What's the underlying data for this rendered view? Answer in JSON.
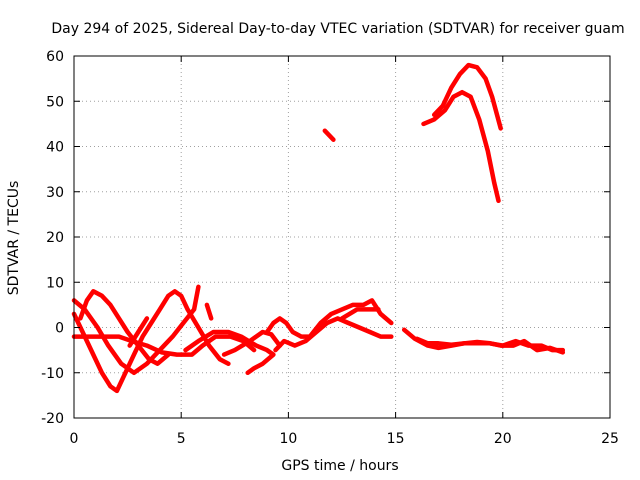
{
  "chart_data": {
    "type": "line",
    "title": "Day 294 of 2025, Sidereal Day-to-day VTEC variation (SDTVAR) for receiver guam",
    "xlabel": "GPS time / hours",
    "ylabel": "SDTVAR / TECUs",
    "xlim": [
      0,
      25
    ],
    "ylim": [
      -20,
      60
    ],
    "xticks": [
      0,
      5,
      10,
      15,
      20,
      25
    ],
    "yticks": [
      -20,
      -10,
      0,
      10,
      20,
      30,
      40,
      50,
      60
    ],
    "grid": true,
    "legend": "none",
    "color": "#ff0000",
    "series": [
      {
        "name": "track-1",
        "points": [
          [
            0,
            3
          ],
          [
            0.4,
            -1
          ],
          [
            0.9,
            -6
          ],
          [
            1.3,
            -10
          ],
          [
            1.7,
            -13
          ],
          [
            2.0,
            -14
          ],
          [
            2.3,
            -11
          ],
          [
            2.8,
            -6
          ],
          [
            3.2,
            -2
          ],
          [
            3.6,
            1
          ],
          [
            4.0,
            4
          ],
          [
            4.4,
            7
          ],
          [
            4.7,
            8
          ],
          [
            5.0,
            7
          ],
          [
            5.3,
            4
          ],
          [
            5.8,
            0
          ],
          [
            6.3,
            -4
          ],
          [
            6.8,
            -7
          ],
          [
            7.2,
            -8
          ]
        ]
      },
      {
        "name": "track-2",
        "points": [
          [
            0,
            6
          ],
          [
            0.5,
            4
          ],
          [
            1.1,
            0
          ],
          [
            1.6,
            -4
          ],
          [
            2.2,
            -8
          ],
          [
            2.8,
            -10
          ],
          [
            3.4,
            -8
          ],
          [
            4.0,
            -5
          ],
          [
            4.6,
            -2
          ],
          [
            5.1,
            1
          ],
          [
            5.6,
            4
          ],
          [
            5.8,
            9
          ]
        ]
      },
      {
        "name": "track-3",
        "points": [
          [
            0.3,
            2
          ],
          [
            0.6,
            6
          ],
          [
            0.9,
            8
          ],
          [
            1.3,
            7
          ],
          [
            1.7,
            5
          ],
          [
            2.1,
            2
          ],
          [
            2.5,
            -1
          ],
          [
            3.0,
            -4
          ],
          [
            3.5,
            -7
          ],
          [
            3.9,
            -8
          ],
          [
            4.4,
            -6
          ]
        ]
      },
      {
        "name": "track-4",
        "points": [
          [
            0,
            -2
          ],
          [
            1.2,
            -2
          ],
          [
            2.1,
            -2
          ],
          [
            2.7,
            -3
          ],
          [
            3.4,
            -4
          ],
          [
            4.1,
            -5.5
          ],
          [
            4.8,
            -6
          ],
          [
            5.5,
            -6
          ],
          [
            6.0,
            -4
          ],
          [
            6.6,
            -2
          ],
          [
            7.3,
            -2
          ],
          [
            7.9,
            -3
          ],
          [
            8.4,
            -5
          ]
        ]
      },
      {
        "name": "track-5",
        "points": [
          [
            2.6,
            -4
          ],
          [
            3.0,
            -1
          ],
          [
            3.4,
            2
          ]
        ]
      },
      {
        "name": "track-6",
        "points": [
          [
            6.2,
            5
          ],
          [
            6.4,
            2
          ]
        ]
      },
      {
        "name": "track-7",
        "points": [
          [
            5.2,
            -5
          ],
          [
            5.8,
            -3
          ],
          [
            6.5,
            -1
          ],
          [
            7.2,
            -1
          ],
          [
            7.8,
            -2
          ],
          [
            8.5,
            -4
          ],
          [
            9.0,
            -5
          ],
          [
            9.3,
            -6
          ],
          [
            8.8,
            -8
          ],
          [
            8.4,
            -9
          ],
          [
            8.1,
            -10
          ]
        ]
      },
      {
        "name": "track-8",
        "points": [
          [
            7.0,
            -6
          ],
          [
            7.5,
            -5
          ],
          [
            8.2,
            -3
          ],
          [
            8.8,
            -1
          ],
          [
            9.2,
            -1.5
          ],
          [
            9.6,
            -4
          ]
        ]
      },
      {
        "name": "track-9",
        "points": [
          [
            9.0,
            -1
          ],
          [
            9.3,
            1
          ],
          [
            9.6,
            2
          ],
          [
            9.9,
            1
          ],
          [
            10.2,
            -1
          ],
          [
            10.6,
            -2
          ],
          [
            11.0,
            -2
          ],
          [
            11.5,
            1
          ],
          [
            12.0,
            3
          ],
          [
            12.5,
            4
          ],
          [
            13.0,
            5
          ],
          [
            13.5,
            5
          ],
          [
            13.9,
            6
          ],
          [
            14.3,
            3
          ],
          [
            14.8,
            1
          ]
        ]
      },
      {
        "name": "track-10",
        "points": [
          [
            9.4,
            -5
          ],
          [
            9.8,
            -3
          ],
          [
            10.3,
            -4
          ],
          [
            10.8,
            -3
          ],
          [
            11.3,
            -1
          ],
          [
            11.8,
            1
          ],
          [
            12.3,
            2
          ],
          [
            12.8,
            1
          ],
          [
            13.3,
            0
          ],
          [
            13.8,
            -1
          ],
          [
            14.3,
            -2
          ],
          [
            14.8,
            -2
          ]
        ]
      },
      {
        "name": "track-11",
        "points": [
          [
            11.7,
            43.5
          ],
          [
            12.1,
            41.5
          ]
        ]
      },
      {
        "name": "track-12",
        "points": [
          [
            12.5,
            2
          ],
          [
            13.2,
            4
          ],
          [
            13.8,
            4
          ],
          [
            14.2,
            4
          ]
        ]
      },
      {
        "name": "track-13",
        "points": [
          [
            15.4,
            -0.5
          ],
          [
            15.9,
            -2.5
          ],
          [
            16.5,
            -4
          ],
          [
            17.0,
            -4.5
          ],
          [
            17.6,
            -4
          ],
          [
            18.2,
            -3.5
          ],
          [
            18.8,
            -3.5
          ],
          [
            19.4,
            -3.5
          ],
          [
            20.0,
            -4
          ],
          [
            20.6,
            -3
          ],
          [
            21.2,
            -4
          ],
          [
            21.8,
            -4
          ],
          [
            22.3,
            -5
          ],
          [
            22.8,
            -5
          ]
        ]
      },
      {
        "name": "track-14",
        "points": [
          [
            16.0,
            -2.5
          ],
          [
            16.5,
            -3.5
          ],
          [
            17.0,
            -3.5
          ],
          [
            17.6,
            -3.8
          ],
          [
            18.2,
            -3.5
          ],
          [
            18.8,
            -3.2
          ],
          [
            19.4,
            -3.5
          ],
          [
            19.9,
            -4
          ],
          [
            20.5,
            -4
          ],
          [
            21.0,
            -3
          ],
          [
            21.6,
            -5
          ],
          [
            22.2,
            -4.5
          ],
          [
            22.8,
            -5.5
          ]
        ]
      },
      {
        "name": "track-15",
        "points": [
          [
            16.3,
            45
          ],
          [
            16.8,
            46
          ],
          [
            17.3,
            48
          ],
          [
            17.7,
            51
          ],
          [
            18.1,
            52
          ],
          [
            18.5,
            51
          ],
          [
            18.9,
            46
          ],
          [
            19.3,
            39
          ],
          [
            19.6,
            32
          ],
          [
            19.8,
            28
          ]
        ]
      },
      {
        "name": "track-16",
        "points": [
          [
            16.8,
            47
          ],
          [
            17.2,
            49
          ],
          [
            17.6,
            53
          ],
          [
            18.0,
            56
          ],
          [
            18.4,
            58
          ],
          [
            18.8,
            57.5
          ],
          [
            19.2,
            55
          ],
          [
            19.5,
            51
          ],
          [
            19.9,
            44
          ]
        ]
      }
    ]
  }
}
